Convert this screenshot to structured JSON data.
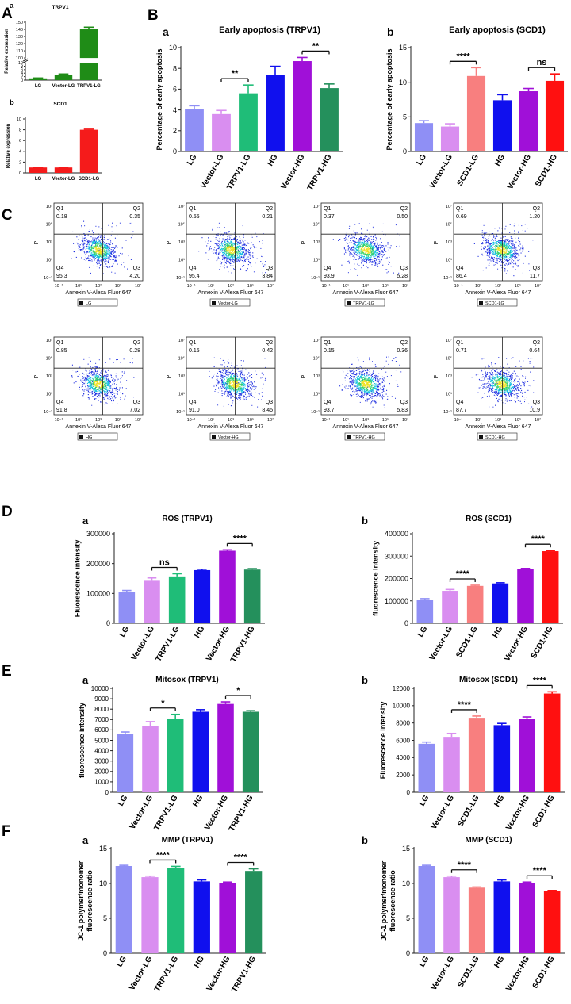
{
  "panel_letters": {
    "A": "A",
    "B": "B",
    "C": "C",
    "D": "D",
    "E": "E",
    "F": "F"
  },
  "colors": {
    "LG": "#8f8ff5",
    "Vector-LG": "#d98ef0",
    "TRPV1-LG": "#1fbd78",
    "HG": "#1010ee",
    "Vector-HG": "#a010d8",
    "TRPV1-HG": "#24905c",
    "SCD1-LG": "#f87f7f",
    "SCD1-HG": "#ff1010",
    "green": "#1f8c17",
    "red": "#f51b1b"
  },
  "flow": {
    "x_axis_label": "Annexin V-Alexa Fluor 647",
    "y_axis_label": "PI",
    "x_ticks": [
      "10⁻¹",
      "10¹",
      "10³",
      "10⁵",
      "10⁷"
    ],
    "y_ticks": [
      "10⁷",
      "10⁵",
      "10³",
      "10¹",
      "10⁻¹"
    ],
    "x_ticks_row2": [
      "10⁻¹",
      "10¹",
      "10³",
      "10⁵",
      "10⁷"
    ],
    "plots": [
      {
        "legend": "LG",
        "q1": "0.18",
        "q2": "0.35",
        "q3": "4.20",
        "q4": "95.3"
      },
      {
        "legend": "Vector-LG",
        "q1": "0.55",
        "q2": "0.21",
        "q3": "3.84",
        "q4": "95.4"
      },
      {
        "legend": "TRPV1-LG",
        "q1": "0.37",
        "q2": "0.50",
        "q3": "5.28",
        "q4": "93.9"
      },
      {
        "legend": "SCD1-LG",
        "q1": "0.69",
        "q2": "1.20",
        "q3": "11.7",
        "q4": "86.4"
      },
      {
        "legend": "HG",
        "q1": "0.85",
        "q2": "0.28",
        "q3": "7.02",
        "q4": "91.8"
      },
      {
        "legend": "Vector-HG",
        "q1": "0.15",
        "q2": "0.42",
        "q3": "8.45",
        "q4": "91.0"
      },
      {
        "legend": "TRPV1-HG",
        "q1": "0.15",
        "q2": "0.36",
        "q3": "5.83",
        "q4": "93.7"
      },
      {
        "legend": "SCD1-HG",
        "q1": "0.71",
        "q2": "0.64",
        "q3": "10.9",
        "q4": "87.7"
      }
    ]
  },
  "chart_data": [
    {
      "id": "A-a",
      "type": "bar",
      "sub": "a",
      "title": "TRPV1",
      "ylabel": "Relative expression",
      "categories": [
        "LG",
        "Vector-LG",
        "TRPV1-LG"
      ],
      "values": [
        1.0,
        3.2,
        140
      ],
      "errors": [
        0.2,
        0.3,
        3
      ],
      "color_keys": [
        "green",
        "green",
        "green"
      ],
      "broken_axis": [
        10,
        100
      ],
      "yticks_low": [
        "0",
        "2",
        "4",
        "6",
        "8",
        "10"
      ],
      "yticks_high": [
        "100",
        "110",
        "120",
        "130",
        "140",
        "150"
      ]
    },
    {
      "id": "A-b",
      "type": "bar",
      "sub": "b",
      "title": "SCD1",
      "ylabel": "Relative expression",
      "categories": [
        "LG",
        "Vector-LG",
        "SCD1-LG"
      ],
      "values": [
        1.0,
        1.0,
        8.0
      ],
      "errors": [
        0.05,
        0.05,
        0.1
      ],
      "color_keys": [
        "red",
        "red",
        "red"
      ],
      "ylim": [
        0,
        10
      ],
      "yticks": [
        0,
        2,
        4,
        6,
        8,
        10
      ]
    },
    {
      "id": "B-a",
      "type": "bar",
      "sub": "a",
      "title": "Early apoptosis (TRPV1)",
      "ylabel": "Percentage of early apoptosis",
      "categories": [
        "LG",
        "Vector-LG",
        "TRPV1-LG",
        "HG",
        "Vector-HG",
        "TRPV1-HG"
      ],
      "values": [
        4.1,
        3.6,
        5.6,
        7.4,
        8.7,
        6.1
      ],
      "errors": [
        0.3,
        0.35,
        0.8,
        0.8,
        0.35,
        0.4
      ],
      "color_keys": [
        "LG",
        "Vector-LG",
        "TRPV1-LG",
        "HG",
        "Vector-HG",
        "TRPV1-HG"
      ],
      "ylim": [
        0,
        10
      ],
      "yticks": [
        0,
        2,
        4,
        6,
        8,
        10
      ],
      "sig": [
        {
          "from": 1,
          "to": 2,
          "label": "**"
        },
        {
          "from": 4,
          "to": 5,
          "label": "**"
        }
      ]
    },
    {
      "id": "B-b",
      "type": "bar",
      "sub": "b",
      "title": "Early apoptosis (SCD1)",
      "ylabel": "Percentage of early apoptosis",
      "categories": [
        "LG",
        "Vector-LG",
        "SCD1-LG",
        "HG",
        "Vector-HG",
        "SCD1-HG"
      ],
      "values": [
        4.1,
        3.6,
        10.9,
        7.4,
        8.7,
        10.2
      ],
      "errors": [
        0.35,
        0.4,
        1.2,
        0.8,
        0.4,
        1.0
      ],
      "color_keys": [
        "LG",
        "Vector-LG",
        "SCD1-LG",
        "HG",
        "Vector-HG",
        "SCD1-HG"
      ],
      "ylim": [
        0,
        15
      ],
      "yticks": [
        0,
        5,
        10,
        15
      ],
      "sig": [
        {
          "from": 1,
          "to": 2,
          "label": "****"
        },
        {
          "from": 4,
          "to": 5,
          "label": "ns"
        }
      ]
    },
    {
      "id": "D-a",
      "type": "bar",
      "sub": "a",
      "title": "ROS (TRPV1)",
      "ylabel": "Fluorescence intensity",
      "categories": [
        "LG",
        "Vector-LG",
        "TRPV1-LG",
        "HG",
        "Vector-HG",
        "TRPV1-HG"
      ],
      "values": [
        105000,
        145000,
        157000,
        178000,
        243000,
        180000
      ],
      "errors": [
        5000,
        7000,
        9000,
        3000,
        3000,
        3000
      ],
      "color_keys": [
        "LG",
        "Vector-LG",
        "TRPV1-LG",
        "HG",
        "Vector-HG",
        "TRPV1-HG"
      ],
      "ylim": [
        0,
        300000
      ],
      "yticks": [
        0,
        100000,
        200000,
        300000
      ],
      "sig": [
        {
          "from": 1,
          "to": 2,
          "label": "ns"
        },
        {
          "from": 4,
          "to": 5,
          "label": "****"
        }
      ]
    },
    {
      "id": "D-b",
      "type": "bar",
      "sub": "b",
      "title": "ROS (SCD1)",
      "ylabel": "fluorescence intensity",
      "categories": [
        "LG",
        "Vector-LG",
        "SCD1-LG",
        "HG",
        "Vector-HG",
        "SCD1-HG"
      ],
      "values": [
        105000,
        145000,
        167000,
        178000,
        242000,
        322000
      ],
      "errors": [
        5000,
        6000,
        3000,
        3000,
        3000,
        3000
      ],
      "color_keys": [
        "LG",
        "Vector-LG",
        "SCD1-LG",
        "HG",
        "Vector-HG",
        "SCD1-HG"
      ],
      "ylim": [
        0,
        400000
      ],
      "yticks": [
        0,
        100000,
        200000,
        300000,
        400000
      ],
      "sig": [
        {
          "from": 1,
          "to": 2,
          "label": "****"
        },
        {
          "from": 4,
          "to": 5,
          "label": "****"
        }
      ]
    },
    {
      "id": "E-a",
      "type": "bar",
      "sub": "a",
      "title": "Mitosox (TRPV1)",
      "ylabel": "fluorescence intensity",
      "categories": [
        "LG",
        "Vector-LG",
        "TRPV1-LG",
        "HG",
        "Vector-HG",
        "TRPV1-HG"
      ],
      "values": [
        5600,
        6400,
        7100,
        7750,
        8500,
        7750
      ],
      "errors": [
        200,
        400,
        400,
        200,
        200,
        100
      ],
      "color_keys": [
        "LG",
        "Vector-LG",
        "TRPV1-LG",
        "HG",
        "Vector-HG",
        "TRPV1-HG"
      ],
      "ylim": [
        0,
        10000
      ],
      "yticks": [
        0,
        1000,
        2000,
        3000,
        4000,
        5000,
        6000,
        7000,
        8000,
        9000,
        10000
      ],
      "sig": [
        {
          "from": 1,
          "to": 2,
          "label": "*"
        },
        {
          "from": 4,
          "to": 5,
          "label": "*"
        }
      ]
    },
    {
      "id": "E-b",
      "type": "bar",
      "sub": "b",
      "title": "Mitosox (SCD1)",
      "ylabel": "Fluorescence intensity",
      "categories": [
        "LG",
        "Vector-LG",
        "SCD1-LG",
        "HG",
        "Vector-HG",
        "SCD1-HG"
      ],
      "values": [
        5600,
        6400,
        8600,
        7750,
        8500,
        11400
      ],
      "errors": [
        200,
        400,
        200,
        200,
        200,
        200
      ],
      "color_keys": [
        "LG",
        "Vector-LG",
        "SCD1-LG",
        "HG",
        "Vector-HG",
        "SCD1-HG"
      ],
      "ylim": [
        0,
        12000
      ],
      "yticks": [
        0,
        2000,
        4000,
        6000,
        8000,
        10000,
        12000
      ],
      "sig": [
        {
          "from": 1,
          "to": 2,
          "label": "****"
        },
        {
          "from": 4,
          "to": 5,
          "label": "****"
        }
      ]
    },
    {
      "id": "F-a",
      "type": "bar",
      "sub": "a",
      "title": "MMP (TRPV1)",
      "ylabel": "JC-1 polymer/monomer fluorescence ratio",
      "categories": [
        "LG",
        "Vector-LG",
        "TRPV1-LG",
        "HG",
        "Vector-HG",
        "TRPV1-HG"
      ],
      "values": [
        12.5,
        10.9,
        12.2,
        10.3,
        10.1,
        11.8
      ],
      "errors": [
        0.1,
        0.15,
        0.25,
        0.2,
        0.1,
        0.3
      ],
      "color_keys": [
        "LG",
        "Vector-LG",
        "TRPV1-LG",
        "HG",
        "Vector-HG",
        "TRPV1-HG"
      ],
      "ylim": [
        0,
        15
      ],
      "yticks": [
        0,
        5,
        10,
        15
      ],
      "sig": [
        {
          "from": 1,
          "to": 2,
          "label": "****"
        },
        {
          "from": 4,
          "to": 5,
          "label": "****"
        }
      ]
    },
    {
      "id": "F-b",
      "type": "bar",
      "sub": "b",
      "title": "MMP (SCD1)",
      "ylabel": "JC-1 polymer/monomer fluorescence ratio",
      "categories": [
        "LG",
        "Vector-LG",
        "SCD1-LG",
        "HG",
        "Vector-HG",
        "SCD1-HG"
      ],
      "values": [
        12.5,
        10.9,
        9.4,
        10.3,
        10.1,
        8.9
      ],
      "errors": [
        0.1,
        0.15,
        0.1,
        0.2,
        0.1,
        0.1
      ],
      "color_keys": [
        "LG",
        "Vector-LG",
        "SCD1-LG",
        "HG",
        "Vector-HG",
        "SCD1-HG"
      ],
      "ylim": [
        0,
        15
      ],
      "yticks": [
        0,
        5,
        10,
        15
      ],
      "sig": [
        {
          "from": 1,
          "to": 2,
          "label": "****"
        },
        {
          "from": 4,
          "to": 5,
          "label": "****"
        }
      ]
    }
  ]
}
